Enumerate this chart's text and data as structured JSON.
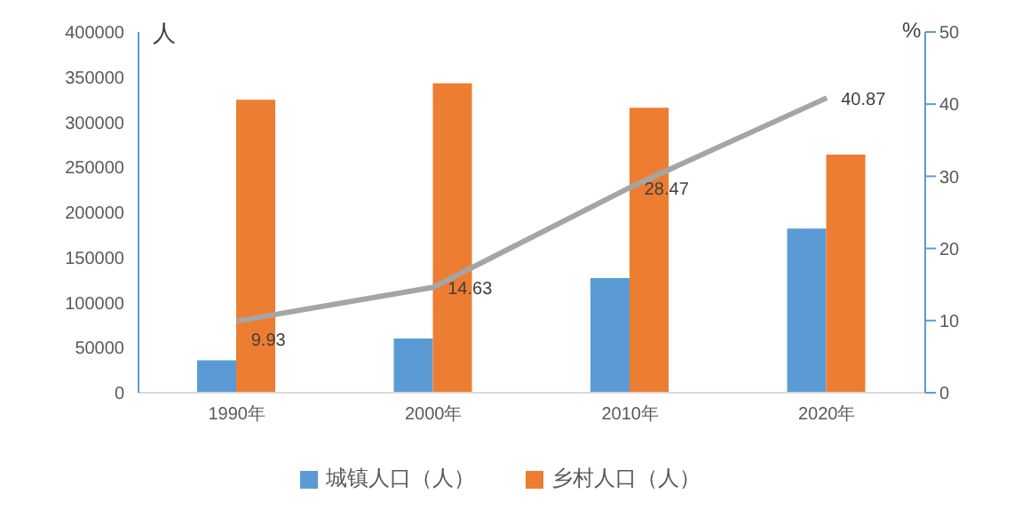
{
  "chart_data": {
    "type": "bar",
    "ylabel": "人",
    "y2label": "%",
    "categories": [
      "1990年",
      "2000年",
      "2010年",
      "2020年"
    ],
    "series": [
      {
        "name": "城镇人口（人）",
        "color": "#5b9bd5",
        "values": [
          36000,
          60000,
          127000,
          182000
        ]
      },
      {
        "name": "乡村人口（人）",
        "color": "#ed7d31",
        "values": [
          325000,
          343000,
          316000,
          264000
        ]
      },
      {
        "type": "line",
        "axis": "y2",
        "color": "#a5a5a5",
        "values": [
          9.93,
          14.63,
          28.47,
          40.87
        ],
        "value_labels": [
          "9.93",
          "14.63",
          "28.47",
          "40.87"
        ]
      }
    ],
    "ylim": [
      0,
      400000
    ],
    "yticks": [
      0,
      50000,
      100000,
      150000,
      200000,
      250000,
      300000,
      350000,
      400000
    ],
    "y2lim": [
      0,
      50
    ],
    "y2ticks": [
      0,
      10,
      20,
      30,
      40,
      50
    ],
    "legend": "bottom",
    "grid": false,
    "marker": "none"
  }
}
